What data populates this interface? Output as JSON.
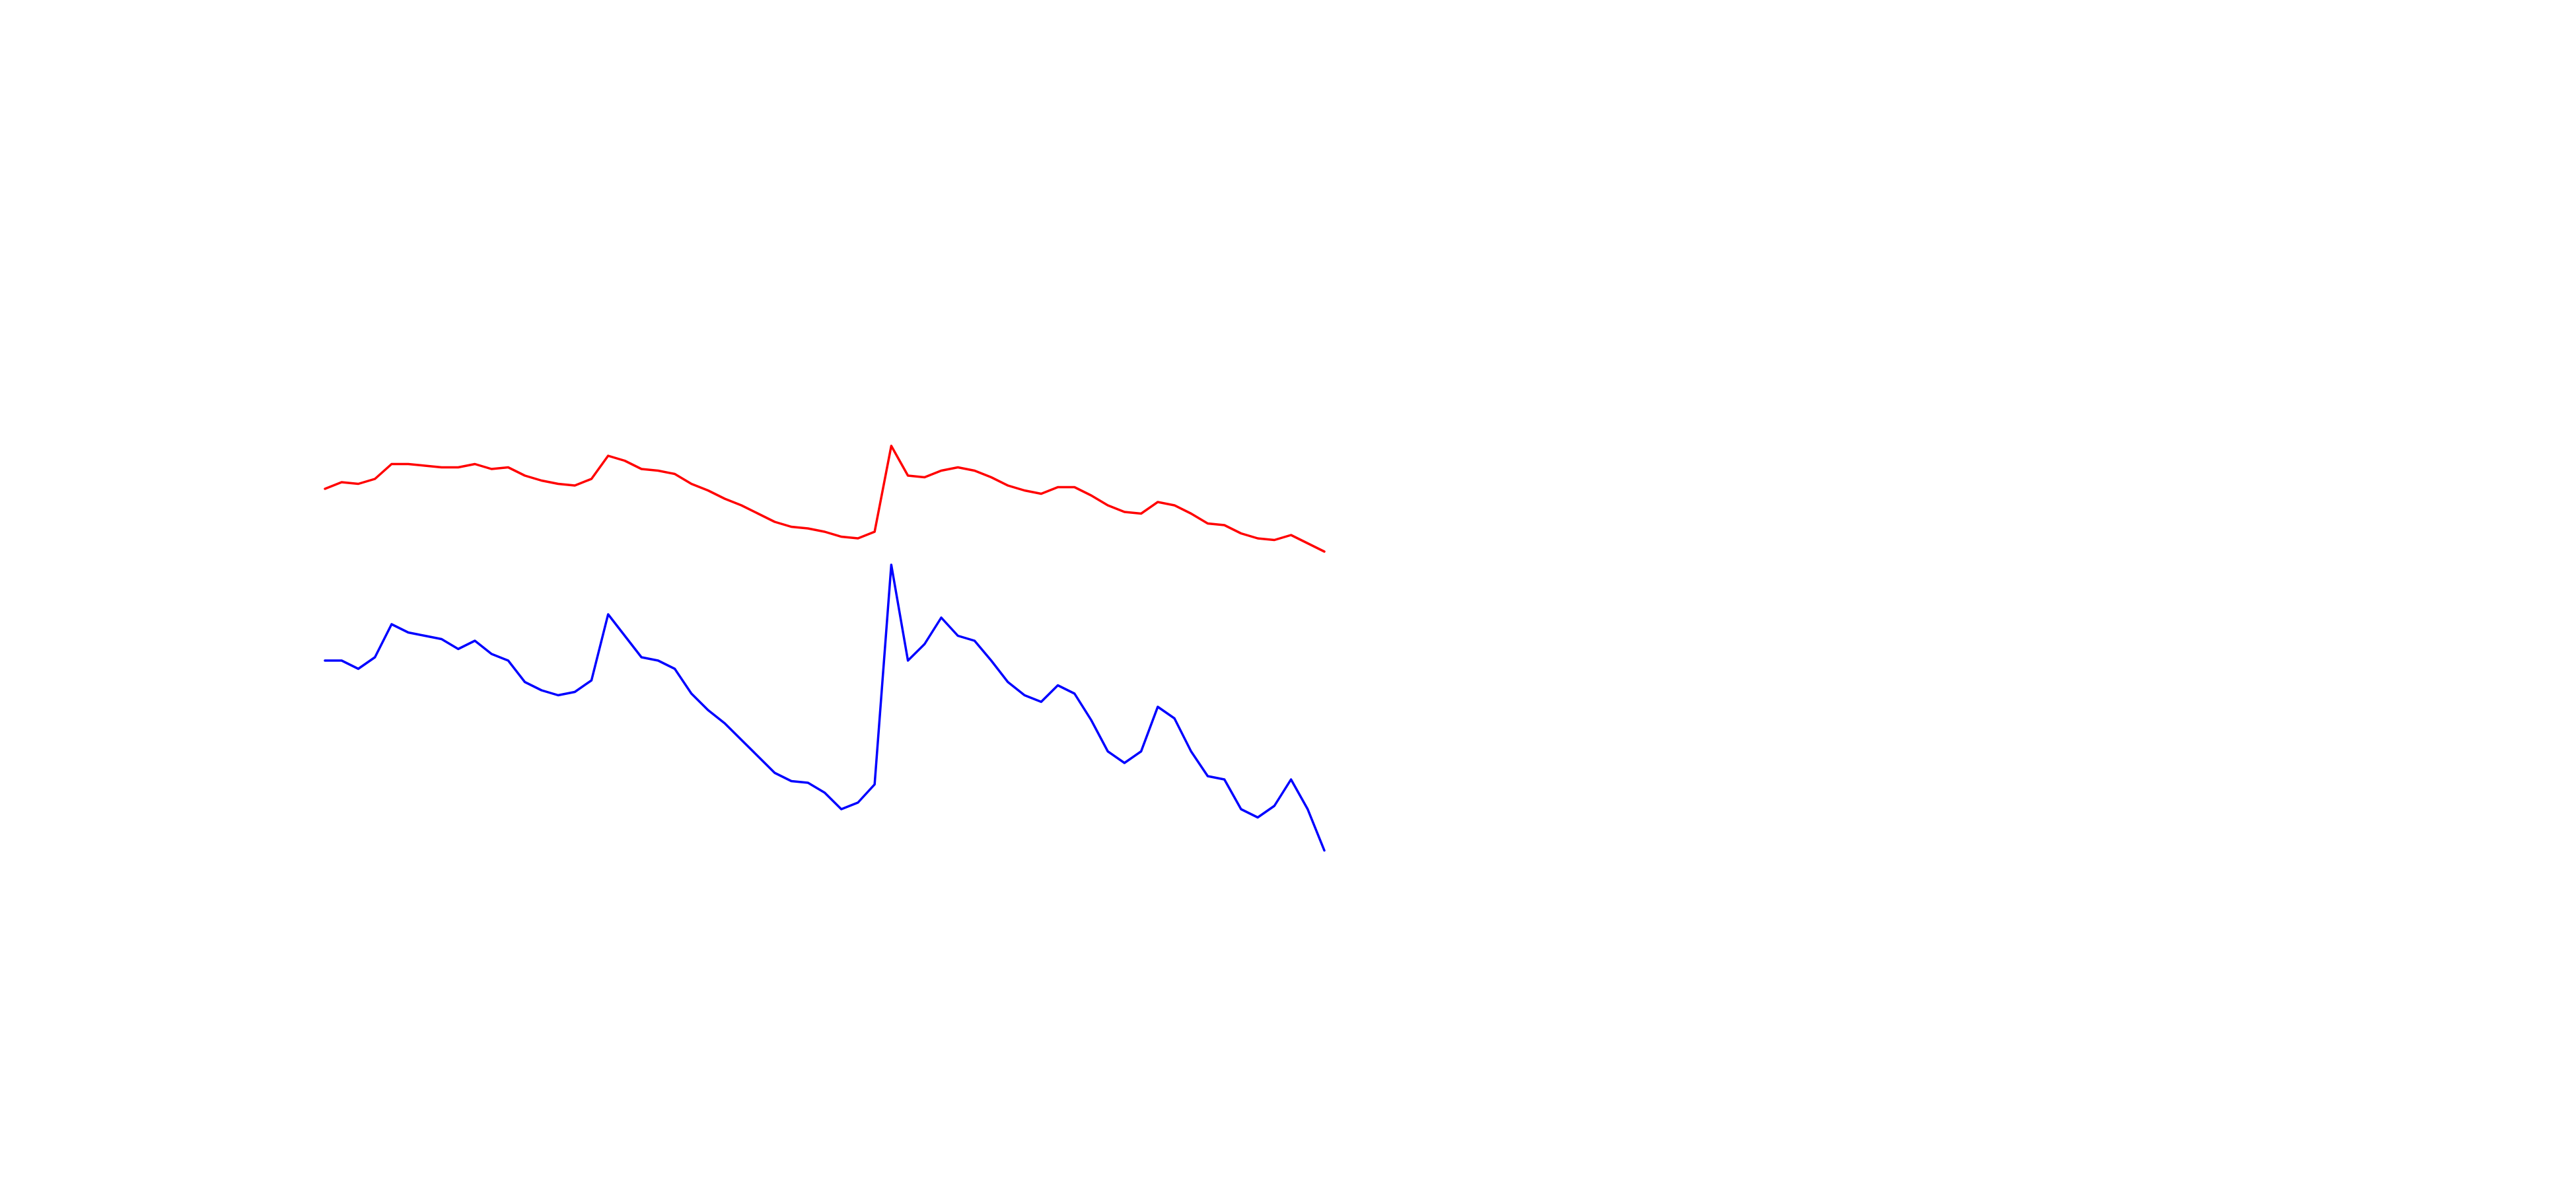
{
  "chart_data": {
    "type": "line",
    "ylim": [
      0,
      720
    ],
    "series": [
      {
        "color": "#ff0000",
        "values": [
          424,
          428,
          427,
          430,
          439,
          439,
          438,
          437,
          437,
          439,
          436,
          437,
          432,
          429,
          427,
          426,
          430,
          444,
          441,
          436,
          435,
          433,
          427,
          423,
          418,
          414,
          409,
          404,
          401,
          400,
          398,
          395,
          394,
          398,
          450,
          432,
          431,
          435,
          437,
          435,
          431,
          426,
          423,
          421,
          425,
          425,
          420,
          414,
          410,
          409,
          416,
          414,
          409,
          403,
          402,
          397,
          394,
          393,
          396,
          391,
          386
        ]
      },
      {
        "color": "#0000ff",
        "values": [
          320,
          320,
          315,
          322,
          342,
          337,
          335,
          333,
          327,
          332,
          324,
          320,
          307,
          302,
          299,
          301,
          308,
          348,
          335,
          322,
          320,
          315,
          300,
          290,
          282,
          272,
          262,
          252,
          247,
          246,
          240,
          230,
          234,
          245,
          378,
          320,
          330,
          346,
          335,
          332,
          320,
          307,
          299,
          295,
          305,
          300,
          284,
          265,
          258,
          265,
          292,
          285,
          265,
          250,
          248,
          230,
          225,
          232,
          248,
          230,
          205
        ]
      }
    ]
  }
}
